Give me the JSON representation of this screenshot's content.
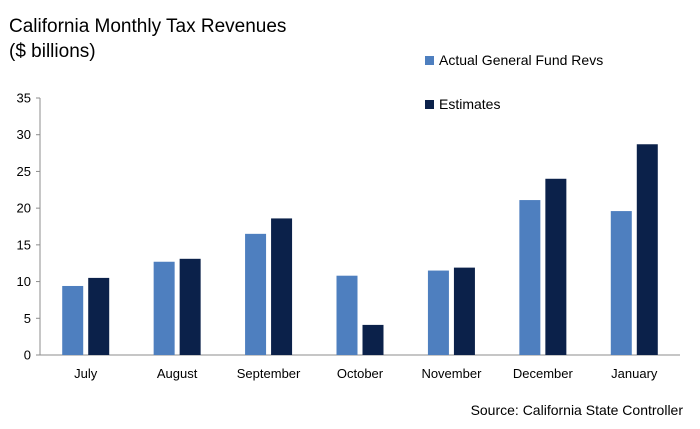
{
  "chart_data": {
    "type": "bar",
    "title": "California Monthly Tax Revenues",
    "subtitle": "($ billions)",
    "categories": [
      "July",
      "August",
      "September",
      "October",
      "November",
      "December",
      "January"
    ],
    "series": [
      {
        "name": "Actual General Fund Revs",
        "color": "#4e7fbf",
        "values": [
          9.4,
          12.7,
          16.5,
          10.8,
          11.5,
          21.1,
          19.6
        ]
      },
      {
        "name": "Estimates",
        "color": "#0b214a",
        "values": [
          10.5,
          13.1,
          18.6,
          4.1,
          11.9,
          24.0,
          28.7
        ]
      }
    ],
    "ylim": [
      0,
      35
    ],
    "yticks": [
      0,
      5,
      10,
      15,
      20,
      25,
      30,
      35
    ],
    "xlabel": "",
    "ylabel": "",
    "grid": false,
    "legend_position": "top-right",
    "source": "Source: California State Controller"
  }
}
